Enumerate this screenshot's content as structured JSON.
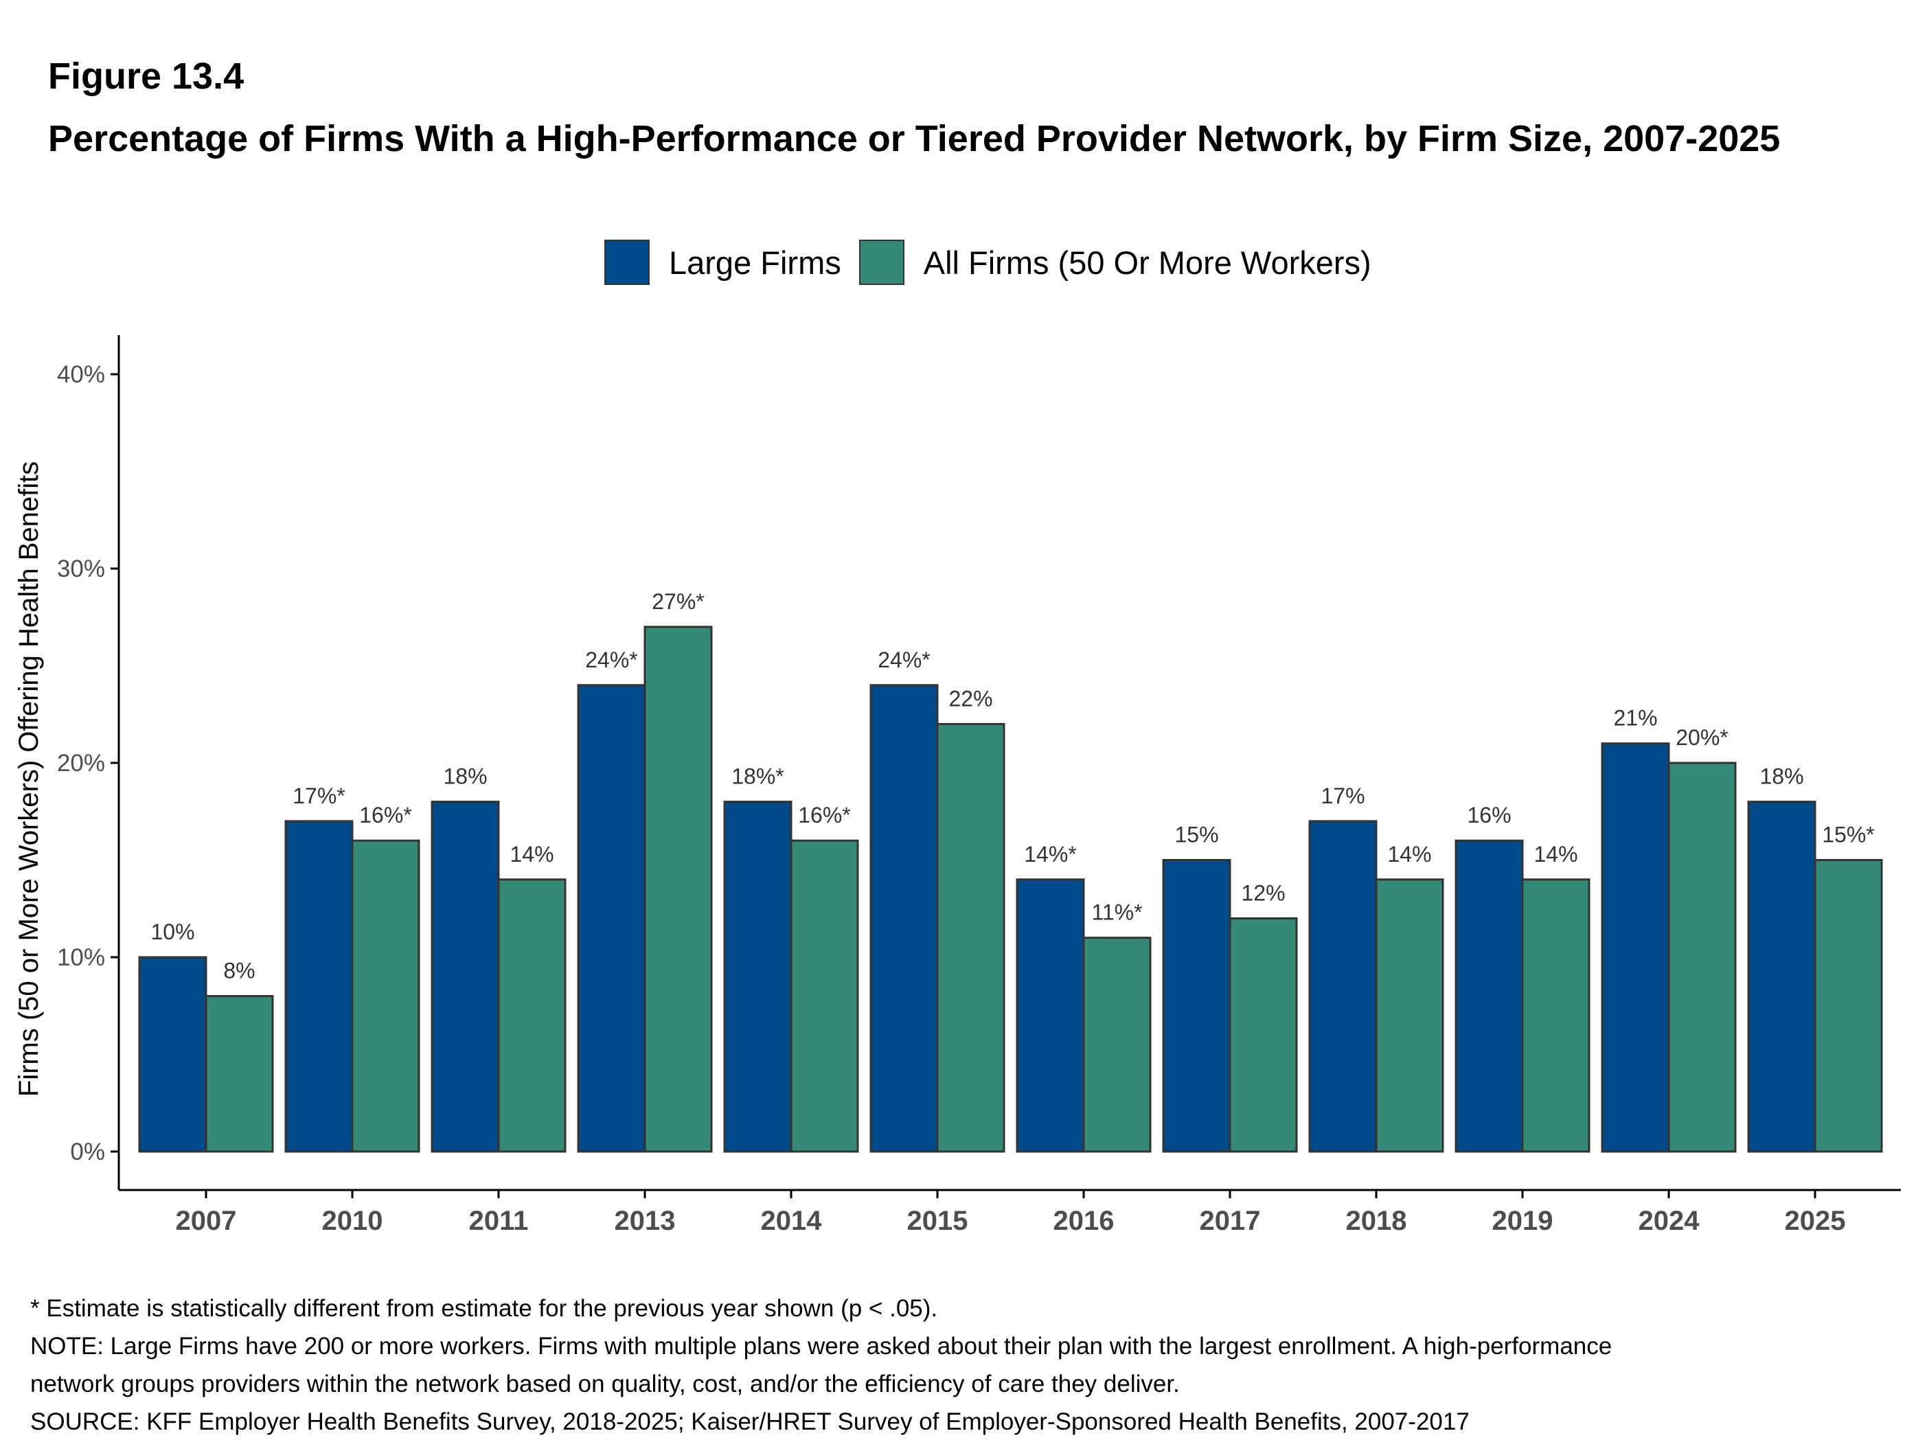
{
  "figure_label": "Figure 13.4",
  "title": "Percentage of Firms With a High-Performance or Tiered Provider Network, by Firm Size, 2007-2025",
  "colors": {
    "large_firms": "#004a8a",
    "all_firms": "#348a75",
    "bar_outline": "#333333",
    "axis": "#000000",
    "tick_text": "#4d4d4d",
    "label_text": "#333333"
  },
  "chart_data": {
    "type": "bar",
    "categories": [
      "2007",
      "2010",
      "2011",
      "2013",
      "2014",
      "2015",
      "2016",
      "2017",
      "2018",
      "2019",
      "2024",
      "2025"
    ],
    "series": [
      {
        "name": "Large Firms",
        "values": [
          10,
          17,
          18,
          24,
          18,
          24,
          14,
          15,
          17,
          16,
          21,
          18
        ],
        "labels": [
          "10%",
          "17%*",
          "18%",
          "24%*",
          "18%*",
          "24%*",
          "14%*",
          "15%",
          "17%",
          "16%",
          "21%",
          "18%"
        ]
      },
      {
        "name": "All Firms (50 Or More Workers)",
        "values": [
          8,
          16,
          14,
          27,
          16,
          22,
          11,
          12,
          14,
          14,
          20,
          15
        ],
        "labels": [
          "8%",
          "16%*",
          "14%",
          "27%*",
          "16%*",
          "22%",
          "11%*",
          "12%",
          "14%",
          "14%",
          "20%*",
          "15%*"
        ]
      }
    ],
    "xlabel": "",
    "ylabel": "Firms (50 or More Workers) Offering Health Benefits",
    "ylim": [
      0,
      40
    ],
    "yticks": [
      0,
      10,
      20,
      30,
      40
    ],
    "ytick_labels": [
      "0%",
      "10%",
      "20%",
      "30%",
      "40%"
    ],
    "grid": false,
    "legend_position": "top-center"
  },
  "notes": {
    "significance": "* Estimate is statistically different from estimate for the previous year shown (p < .05).",
    "note_line1": "NOTE: Large Firms have 200 or more workers.  Firms with multiple plans were asked about their plan with the largest enrollment.  A high-performance",
    "note_line2": "network groups providers within the network based on quality, cost, and/or the efficiency of care they deliver.",
    "source": "SOURCE: KFF Employer Health Benefits Survey, 2018-2025; Kaiser/HRET Survey of Employer-Sponsored Health Benefits, 2007-2017"
  }
}
